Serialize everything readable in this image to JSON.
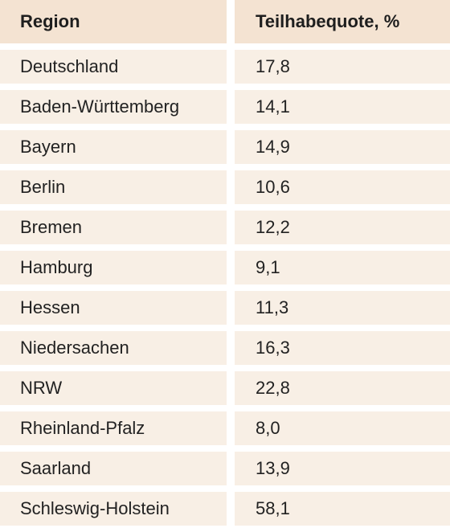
{
  "table": {
    "columns": [
      "Region",
      "Teilhabequote, %"
    ],
    "rows": [
      {
        "region": "Deutschland",
        "value": "17,8"
      },
      {
        "region": "Baden-Württemberg",
        "value": "14,1"
      },
      {
        "region": "Bayern",
        "value": "14,9"
      },
      {
        "region": "Berlin",
        "value": "10,6"
      },
      {
        "region": "Bremen",
        "value": "12,2"
      },
      {
        "region": "Hamburg",
        "value": "9,1"
      },
      {
        "region": "Hessen",
        "value": "11,3"
      },
      {
        "region": "Niedersachen",
        "value": "16,3"
      },
      {
        "region": "NRW",
        "value": "22,8"
      },
      {
        "region": "Rheinland-Pfalz",
        "value": "8,0"
      },
      {
        "region": "Saarland",
        "value": "13,9"
      },
      {
        "region": "Schleswig-Holstein",
        "value": "58,1"
      }
    ]
  },
  "colors": {
    "header_bg": "#f4e3d2",
    "row_bg": "#f8efe5",
    "separator": "#ffffff"
  }
}
